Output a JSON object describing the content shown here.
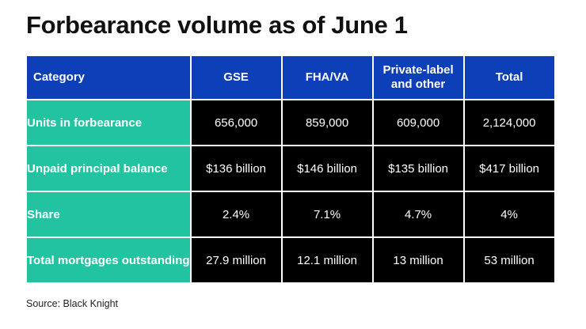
{
  "title": "Forbearance volume as of June 1",
  "source": "Source: Black Knight",
  "colors": {
    "header_bg": "#0d3fb8",
    "row_label_bg": "#22c3a1",
    "cell_bg": "#000000",
    "text_light": "#ffffff"
  },
  "chart_data": {
    "type": "table",
    "title": "Forbearance volume as of June 1",
    "columns": [
      "Category",
      "GSE",
      "FHA/VA",
      "Private-label and other",
      "Total"
    ],
    "rows": [
      {
        "label": "Units in forbearance",
        "values": [
          "656,000",
          "859,000",
          "609,000",
          "2,124,000"
        ]
      },
      {
        "label": "Unpaid principal balance",
        "values": [
          "$136 billion",
          "$146 billion",
          "$135 billion",
          "$417 billion"
        ]
      },
      {
        "label": "Share",
        "values": [
          "2.4%",
          "7.1%",
          "4.7%",
          "4%"
        ]
      },
      {
        "label": "Total mortgages outstanding",
        "values": [
          "27.9 million",
          "12.1 million",
          "13 million",
          "53 million"
        ]
      }
    ],
    "source": "Source: Black Knight"
  }
}
